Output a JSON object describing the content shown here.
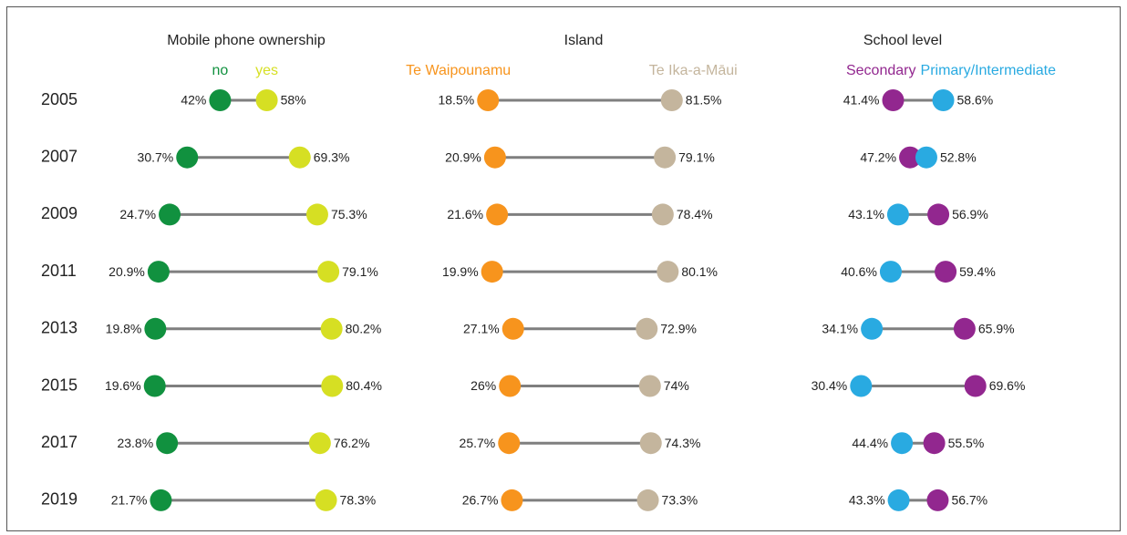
{
  "chart_data": [
    {
      "type": "dumbbell",
      "title": "Mobile phone ownership",
      "categories": [
        "2005",
        "2007",
        "2009",
        "2011",
        "2013",
        "2015",
        "2017",
        "2019"
      ],
      "series": [
        {
          "name": "no",
          "color": "#11913f",
          "values": [
            42,
            30.7,
            24.7,
            20.9,
            19.8,
            19.6,
            23.8,
            21.7
          ],
          "value_labels": [
            "42%",
            "30.7%",
            "24.7%",
            "20.9%",
            "19.8%",
            "19.6%",
            "23.8%",
            "21.7%"
          ]
        },
        {
          "name": "yes",
          "color": "#d6df23",
          "values": [
            58,
            69.3,
            75.3,
            79.1,
            80.2,
            80.4,
            76.2,
            78.3
          ],
          "value_labels": [
            "58%",
            "69.3%",
            "75.3%",
            "79.1%",
            "80.2%",
            "80.4%",
            "76.2%",
            "78.3%"
          ]
        }
      ]
    },
    {
      "type": "dumbbell",
      "title": "Island",
      "series": [
        {
          "name": "Te Waipounamu",
          "color": "#f7941d",
          "values": [
            18.5,
            20.9,
            21.6,
            19.9,
            27.1,
            26,
            25.7,
            26.7
          ],
          "value_labels": [
            "18.5%",
            "20.9%",
            "21.6%",
            "19.9%",
            "27.1%",
            "26%",
            "25.7%",
            "26.7%"
          ]
        },
        {
          "name": "Te Ika-a-Māui",
          "color": "#c4b59d",
          "values": [
            81.5,
            79.1,
            78.4,
            80.1,
            72.9,
            74,
            74.3,
            73.3
          ],
          "value_labels": [
            "81.5%",
            "79.1%",
            "78.4%",
            "80.1%",
            "72.9%",
            "74%",
            "74.3%",
            "73.3%"
          ]
        }
      ]
    },
    {
      "type": "dumbbell",
      "title": "School level",
      "series": [
        {
          "name": "Secondary",
          "color": "#92278f",
          "values": [
            41.4,
            47.2,
            56.9,
            59.4,
            65.9,
            69.6,
            55.5,
            56.7
          ],
          "value_labels": [
            "41.4%",
            "47.2%",
            "56.9%",
            "59.4%",
            "65.9%",
            "69.6%",
            "55.5%",
            "56.7%"
          ]
        },
        {
          "name": "Primary/Intermediate",
          "color": "#29aae1",
          "values": [
            58.6,
            52.8,
            43.1,
            40.6,
            34.1,
            30.4,
            44.4,
            43.3
          ],
          "value_labels": [
            "58.6%",
            "52.8%",
            "43.1%",
            "40.6%",
            "34.1%",
            "30.4%",
            "44.4%",
            "43.3%"
          ]
        }
      ]
    }
  ]
}
